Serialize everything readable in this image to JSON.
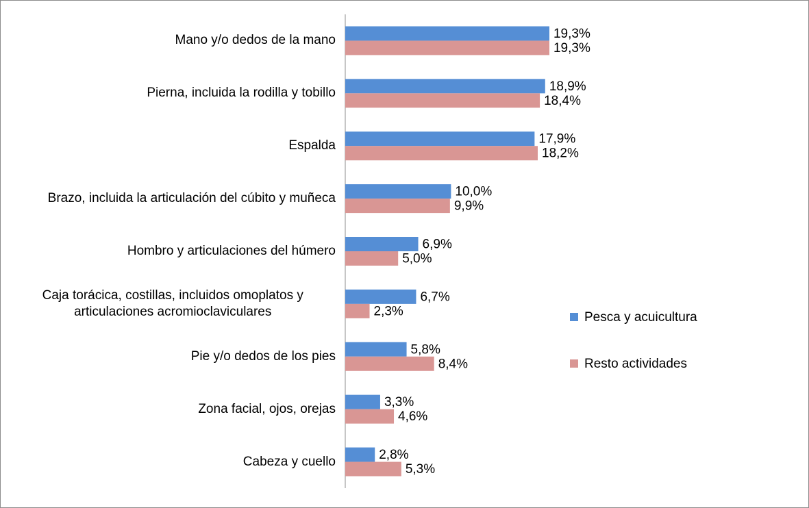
{
  "chart_data": {
    "type": "hbar",
    "categories": [
      "Mano y/o dedos de la mano",
      "Pierna, incluida la rodilla y tobillo",
      "Espalda",
      "Brazo, incluida la articulación del cúbito y muñeca",
      "Hombro y articulaciones del húmero",
      "Caja torácica, costillas, incluidos omoplatos y articulaciones acromioclaviculares",
      "Pie y/o dedos de los pies",
      "Zona facial, ojos, orejas",
      "Cabeza y cuello"
    ],
    "series": [
      {
        "name": "Pesca y acuicultura",
        "color": "#558ed5",
        "values": [
          19.3,
          18.9,
          17.9,
          10.0,
          6.9,
          6.7,
          5.8,
          3.3,
          2.8
        ],
        "value_labels": [
          "19,3%",
          "18,9%",
          "17,9%",
          "10,0%",
          "6,9%",
          "6,7%",
          "5,8%",
          "3,3%",
          "2,8%"
        ]
      },
      {
        "name": "Resto actividades",
        "color": "#d99694",
        "values": [
          19.3,
          18.4,
          18.2,
          9.9,
          5.0,
          2.3,
          8.4,
          4.6,
          5.3
        ],
        "value_labels": [
          "19,3%",
          "18,4%",
          "18,2%",
          "9,9%",
          "5,0%",
          "2,3%",
          "8,4%",
          "4,6%",
          "5,3%"
        ]
      }
    ],
    "xlim": [
      0,
      25
    ],
    "legend": "right"
  }
}
